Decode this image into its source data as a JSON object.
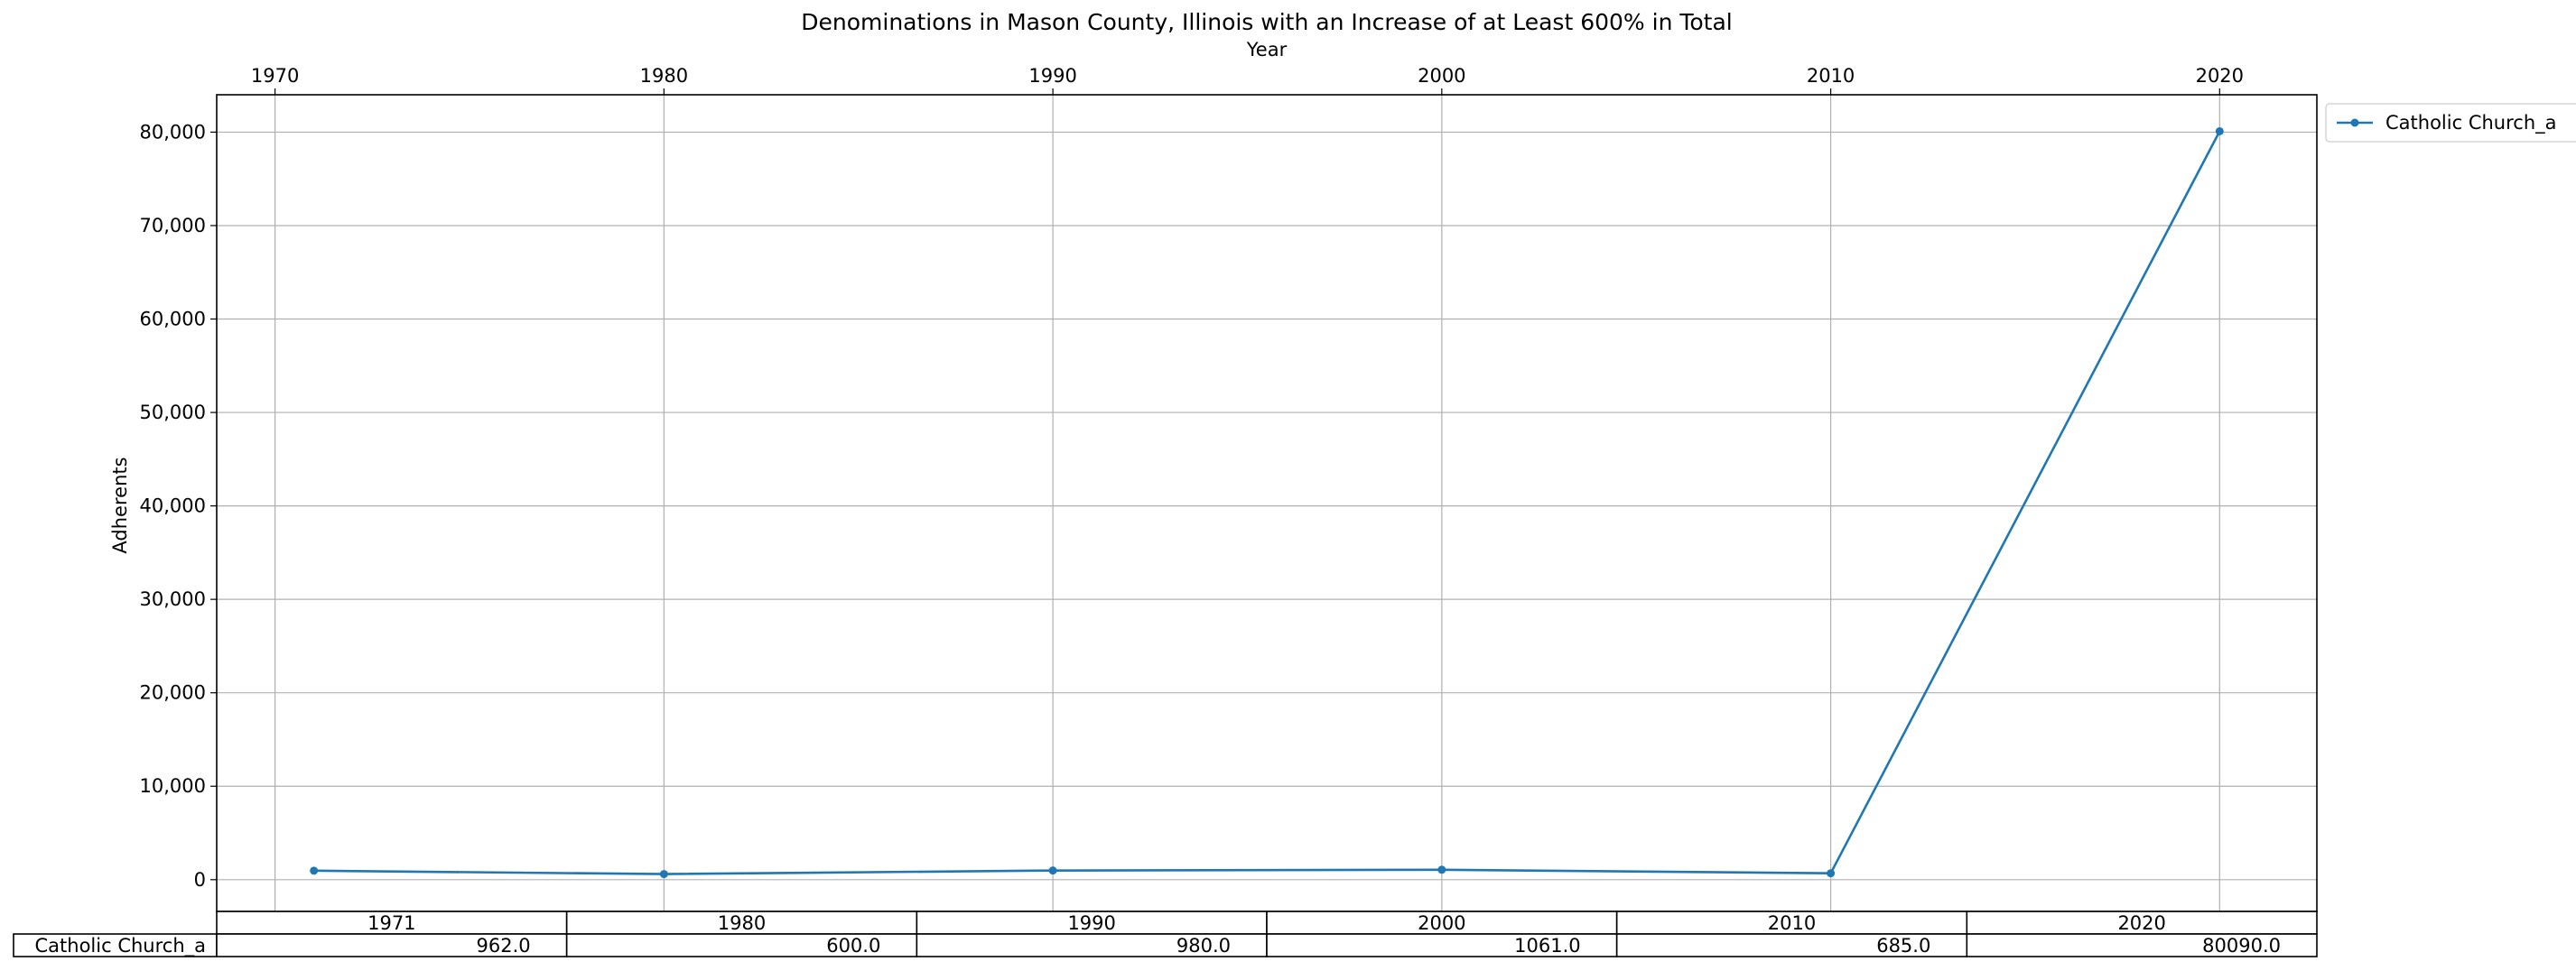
{
  "chart_data": {
    "type": "line",
    "title": "Denominations in Mason County, Illinois with an Increase of at Least 600% in Total",
    "xlabel": "Year",
    "ylabel": "Adherents",
    "x": [
      1971,
      1980,
      1990,
      2000,
      2010,
      2020
    ],
    "x_ticks": [
      1970,
      1980,
      1990,
      2000,
      2010,
      2020
    ],
    "x_tick_labels": [
      "1970",
      "1980",
      "1990",
      "2000",
      "2010",
      "2020"
    ],
    "xlim": [
      1968.5,
      2022.5
    ],
    "x_axis_position": "top",
    "y_ticks": [
      0,
      10000,
      20000,
      30000,
      40000,
      50000,
      60000,
      70000,
      80000
    ],
    "y_tick_labels": [
      "0",
      "10,000",
      "20,000",
      "30,000",
      "40,000",
      "50,000",
      "60,000",
      "70,000",
      "80,000"
    ],
    "ylim": [
      -3400,
      84000
    ],
    "grid": true,
    "legend_position": "outside-top-right",
    "series": [
      {
        "name": "Catholic Church_a",
        "color": "#1f77b4",
        "values": [
          962,
          600,
          980,
          1061,
          685,
          80090
        ]
      }
    ],
    "table": {
      "columns": [
        "1971",
        "1980",
        "1990",
        "2000",
        "2010",
        "2020"
      ],
      "rows": [
        {
          "label": "Catholic Church_a",
          "cells": [
            "962.0",
            "600.0",
            "980.0",
            "1061.0",
            "685.0",
            "80090.0"
          ]
        }
      ]
    }
  }
}
